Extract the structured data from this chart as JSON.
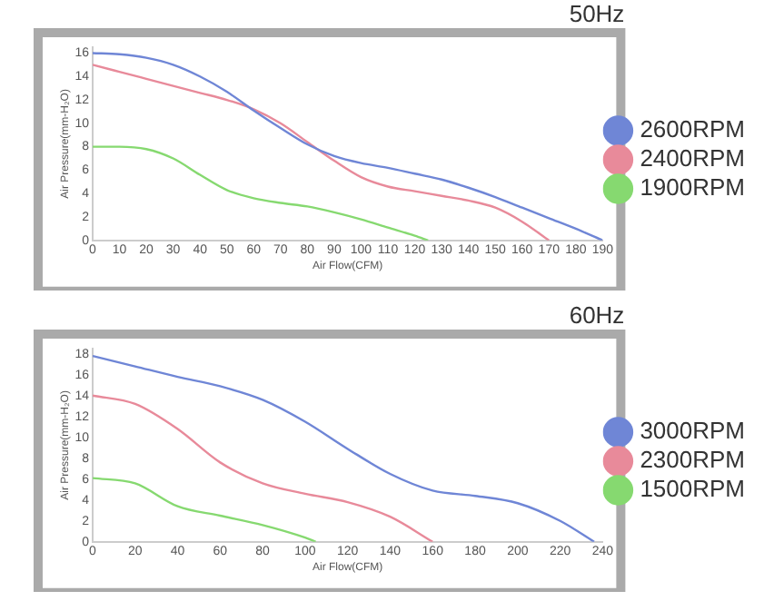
{
  "chart_data": [
    {
      "type": "line",
      "title": "50Hz",
      "xlabel": "Air Flow(CFM)",
      "ylabel": "Air Pressure(mm-H₂O)",
      "xlim": [
        0,
        190
      ],
      "xticks": [
        0,
        10,
        20,
        30,
        40,
        50,
        60,
        70,
        80,
        90,
        100,
        110,
        120,
        130,
        140,
        150,
        160,
        170,
        180,
        190
      ],
      "ylim": [
        0,
        16.5
      ],
      "yticks": [
        0,
        2,
        4,
        6,
        8,
        10,
        12,
        14,
        16
      ],
      "legend": "right",
      "marker": "none",
      "series": [
        {
          "name": "2600RPM",
          "color": "#6f86d6",
          "x": [
            0,
            10,
            20,
            30,
            40,
            50,
            60,
            70,
            80,
            90,
            100,
            110,
            120,
            130,
            140,
            150,
            160,
            170,
            180,
            190
          ],
          "values": [
            16,
            15.9,
            15.6,
            15,
            14,
            12.7,
            11.1,
            9.6,
            8.2,
            7.2,
            6.6,
            6.2,
            5.7,
            5.2,
            4.5,
            3.7,
            2.8,
            1.9,
            1,
            0
          ]
        },
        {
          "name": "2400RPM",
          "color": "#e88a9a",
          "x": [
            0,
            10,
            20,
            30,
            40,
            50,
            60,
            70,
            80,
            90,
            100,
            110,
            120,
            130,
            140,
            150,
            160,
            170
          ],
          "values": [
            15,
            14.4,
            13.8,
            13.2,
            12.6,
            12,
            11.2,
            10,
            8.4,
            6.8,
            5.4,
            4.6,
            4.2,
            3.8,
            3.4,
            2.8,
            1.6,
            0
          ]
        },
        {
          "name": "1900RPM",
          "color": "#86d970",
          "x": [
            0,
            10,
            20,
            30,
            40,
            50,
            60,
            70,
            80,
            90,
            100,
            110,
            120,
            125
          ],
          "values": [
            8,
            8,
            7.8,
            7,
            5.6,
            4.3,
            3.6,
            3.2,
            2.9,
            2.4,
            1.8,
            1.1,
            0.4,
            0
          ]
        }
      ]
    },
    {
      "type": "line",
      "title": "60Hz",
      "xlabel": "Air Flow(CFM)",
      "ylabel": "Air Pressure(mm-H₂O)",
      "xlim": [
        0,
        240
      ],
      "xticks": [
        0,
        20,
        40,
        60,
        80,
        100,
        120,
        140,
        160,
        180,
        200,
        220,
        240
      ],
      "ylim": [
        0,
        18.5
      ],
      "yticks": [
        0,
        2,
        4,
        6,
        8,
        10,
        12,
        14,
        16,
        18
      ],
      "legend": "right",
      "marker": "none",
      "series": [
        {
          "name": "3000RPM",
          "color": "#6f86d6",
          "x": [
            0,
            20,
            40,
            60,
            80,
            100,
            120,
            140,
            160,
            180,
            200,
            220,
            236
          ],
          "values": [
            17.8,
            16.8,
            15.8,
            14.9,
            13.6,
            11.5,
            8.9,
            6.5,
            4.9,
            4.4,
            3.7,
            2,
            0
          ]
        },
        {
          "name": "2300RPM",
          "color": "#e88a9a",
          "x": [
            0,
            20,
            40,
            60,
            80,
            100,
            120,
            140,
            160
          ],
          "values": [
            14,
            13.2,
            10.8,
            7.6,
            5.6,
            4.6,
            3.8,
            2.4,
            0
          ]
        },
        {
          "name": "1500RPM",
          "color": "#86d970",
          "x": [
            0,
            20,
            40,
            60,
            80,
            100,
            105
          ],
          "values": [
            6.1,
            5.6,
            3.4,
            2.5,
            1.6,
            0.4,
            0
          ]
        }
      ]
    }
  ]
}
